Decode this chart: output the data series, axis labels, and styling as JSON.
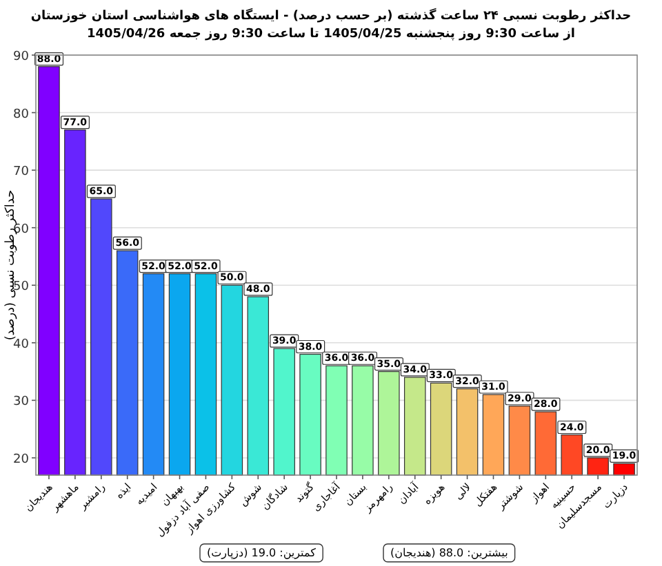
{
  "chart_data": {
    "type": "bar",
    "title": "حداکثر رطوبت نسبی ۲۴ ساعت گذشته (بر حسب درصد) - ایستگاه های هواشناسی استان خوزستان",
    "subtitle": "از ساعت 9:30 روز پنجشنبه 1405/04/25 تا ساعت 9:30 روز جمعه 1405/04/26",
    "ylabel": "حداکثر رطوبت نسبی (درصد)",
    "categories": [
      "هندیجان",
      "ماهشهر",
      "رامشیر",
      "ایذه",
      "امیدیه",
      "بهبهان",
      "صفی آباد دزفول",
      "کشاورزی اهواز",
      "شوش",
      "شادگان",
      "گتوند",
      "آغاجاری",
      "بستان",
      "رامهرمز",
      "آبادان",
      "هویزه",
      "لالی",
      "هفتکل",
      "شوشتر",
      "اهواز",
      "حسینیه",
      "مسجدسلیمان",
      "دزپارت"
    ],
    "values": [
      88,
      77,
      65,
      56,
      52,
      52,
      52,
      50,
      48,
      39,
      38,
      36,
      36,
      35,
      34,
      33,
      32,
      31,
      29,
      28,
      24,
      20,
      19
    ],
    "value_labels": [
      "88.0",
      "77.0",
      "65.0",
      "56.0",
      "52.0",
      "52.0",
      "52.0",
      "50.0",
      "48.0",
      "39.0",
      "38.0",
      "36.0",
      "36.0",
      "35.0",
      "34.0",
      "33.0",
      "32.0",
      "31.0",
      "29.0",
      "28.0",
      "24.0",
      "20.0",
      "19.0"
    ],
    "colors": [
      "#8000ff",
      "#6824fe",
      "#5148fc",
      "#3a6af9",
      "#238af5",
      "#0ba7ef",
      "#0bc1e8",
      "#23d6e0",
      "#3ae8d6",
      "#51f5cc",
      "#68fcc1",
      "#80ffb4",
      "#97fca7",
      "#aef599",
      "#c5e88a",
      "#dcd67a",
      "#f3c16a",
      "#ffa758",
      "#ff8a48",
      "#ff6a36",
      "#ff4824",
      "#ff2412",
      "#ff0000"
    ],
    "ylim": [
      17,
      90
    ],
    "yticks": [
      20,
      30,
      40,
      50,
      60,
      70,
      80,
      90
    ],
    "grid": "y",
    "annotations": [
      "کمترین: 19.0 (دزپارت)",
      "بیشترین: 88.0 (هندیجان)"
    ]
  }
}
